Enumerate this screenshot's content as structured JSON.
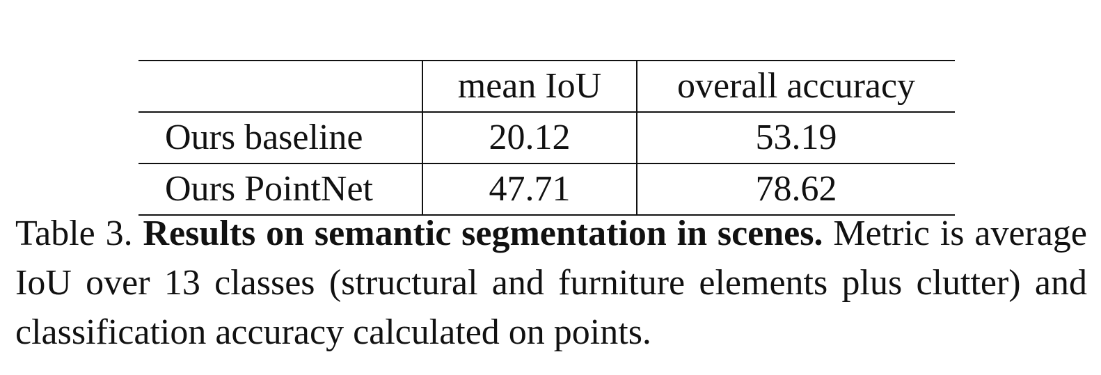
{
  "table": {
    "headers": [
      "",
      "mean IoU",
      "overall accuracy"
    ],
    "rows": [
      {
        "method": "Ours baseline",
        "mean_iou": "20.12",
        "overall_accuracy": "53.19"
      },
      {
        "method": "Ours PointNet",
        "mean_iou": "47.71",
        "overall_accuracy": "78.62"
      }
    ]
  },
  "caption": {
    "label": "Table 3.",
    "title": "Results on semantic segmentation in scenes.",
    "body": "Metric is average IoU over 13 classes (structural and furniture elements plus clutter) and classification accuracy calculated on points."
  }
}
